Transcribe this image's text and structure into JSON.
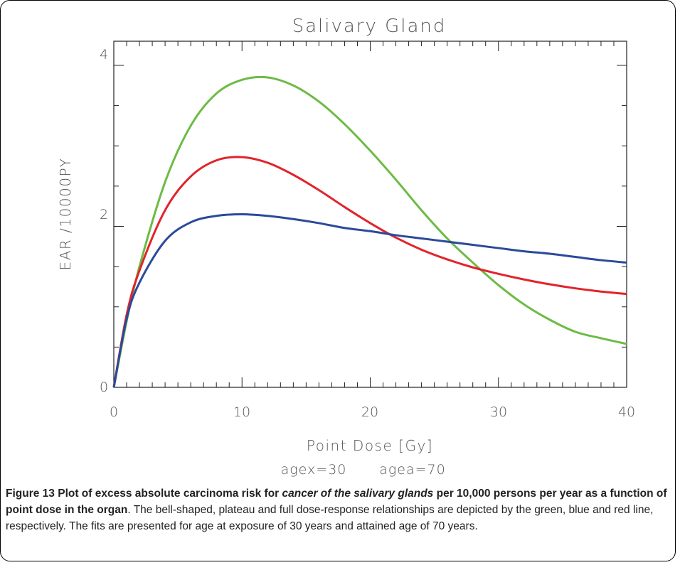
{
  "chart_data": {
    "type": "line",
    "title": "Salivary Gland",
    "xlabel": "Point Dose [Gy]",
    "ylabel": "EAR /10000PY",
    "params_label_1": "agex=30",
    "params_label_2": "agea=70",
    "xlim": [
      0,
      40
    ],
    "ylim": [
      0,
      4.3
    ],
    "x_ticks": [
      "0",
      "10",
      "20",
      "30",
      "40"
    ],
    "y_ticks": [
      "0",
      "2",
      "4"
    ],
    "grid": false,
    "series": [
      {
        "color": "#6dbb45",
        "x": [
          0,
          1,
          2,
          4,
          6,
          8,
          10,
          12,
          14,
          16,
          18,
          20,
          22,
          24,
          26,
          28,
          30,
          32,
          34,
          36,
          38,
          40
        ],
        "y": [
          0,
          0.82,
          1.5,
          2.55,
          3.25,
          3.65,
          3.82,
          3.85,
          3.75,
          3.55,
          3.27,
          2.94,
          2.58,
          2.2,
          1.85,
          1.55,
          1.27,
          1.03,
          0.84,
          0.69,
          0.61,
          0.54
        ]
      },
      {
        "color": "#e2232a",
        "x": [
          0,
          1,
          2,
          4,
          6,
          8,
          10,
          12,
          14,
          16,
          18,
          20,
          22,
          24,
          26,
          28,
          30,
          32,
          34,
          36,
          38,
          40
        ],
        "y": [
          0,
          0.9,
          1.45,
          2.2,
          2.62,
          2.82,
          2.86,
          2.79,
          2.64,
          2.45,
          2.24,
          2.04,
          1.86,
          1.71,
          1.59,
          1.49,
          1.41,
          1.34,
          1.28,
          1.23,
          1.19,
          1.16
        ]
      },
      {
        "color": "#2b4a9b",
        "x": [
          0,
          1,
          2,
          4,
          6,
          8,
          10,
          12,
          14,
          16,
          18,
          20,
          22,
          24,
          26,
          28,
          30,
          32,
          34,
          36,
          38,
          40
        ],
        "y": [
          0,
          0.85,
          1.3,
          1.82,
          2.05,
          2.13,
          2.15,
          2.13,
          2.09,
          2.04,
          1.98,
          1.94,
          1.89,
          1.85,
          1.81,
          1.77,
          1.73,
          1.69,
          1.66,
          1.62,
          1.58,
          1.55
        ]
      }
    ]
  },
  "caption": {
    "figure_number": "Figure 13",
    "part1": " Plot of excess absolute carcinoma risk for ",
    "italic": "cancer of the salivary glands",
    "part2": " per 10,000 persons per year as a function of point dose in the organ",
    "rest": ". The bell-shaped, plateau and full dose-response relationships are depicted by the green, blue and red line, respectively. The fits are presented for age at exposure of 30 years and attained age of 70 years."
  }
}
